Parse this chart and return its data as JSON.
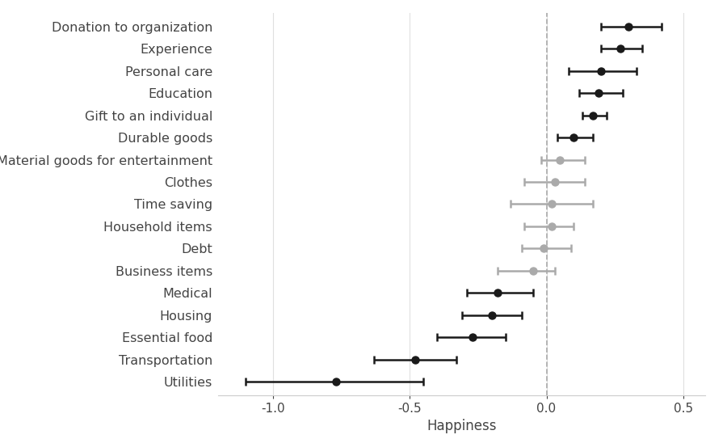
{
  "categories": [
    "Donation to organization",
    "Experience",
    "Personal care",
    "Education",
    "Gift to an individual",
    "Durable goods",
    "Material goods for entertainment",
    "Clothes",
    "Time saving",
    "Household items",
    "Debt",
    "Business items",
    "Medical",
    "Housing",
    "Essential food",
    "Transportation",
    "Utilities"
  ],
  "estimates": [
    0.3,
    0.27,
    0.2,
    0.19,
    0.17,
    0.1,
    0.05,
    0.03,
    0.02,
    0.02,
    -0.01,
    -0.05,
    -0.18,
    -0.2,
    -0.27,
    -0.48,
    -0.77
  ],
  "ci_low": [
    0.2,
    0.2,
    0.08,
    0.12,
    0.13,
    0.04,
    -0.02,
    -0.08,
    -0.13,
    -0.08,
    -0.09,
    -0.18,
    -0.29,
    -0.31,
    -0.4,
    -0.63,
    -1.1
  ],
  "ci_high": [
    0.42,
    0.35,
    0.33,
    0.28,
    0.22,
    0.17,
    0.14,
    0.14,
    0.17,
    0.1,
    0.09,
    0.03,
    -0.05,
    -0.09,
    -0.15,
    -0.33,
    -0.45
  ],
  "colors": [
    "#1a1a1a",
    "#1a1a1a",
    "#1a1a1a",
    "#1a1a1a",
    "#1a1a1a",
    "#1a1a1a",
    "#aaaaaa",
    "#aaaaaa",
    "#aaaaaa",
    "#aaaaaa",
    "#aaaaaa",
    "#aaaaaa",
    "#1a1a1a",
    "#1a1a1a",
    "#1a1a1a",
    "#1a1a1a",
    "#1a1a1a"
  ],
  "xlabel": "Happiness",
  "xlim": [
    -1.2,
    0.58
  ],
  "xticks": [
    -1.0,
    -0.5,
    0.0,
    0.5
  ],
  "xtick_labels": [
    "-1.0",
    "-0.5",
    "0.0",
    "0.5"
  ],
  "vline_x": 0.0,
  "background_color": "#ffffff",
  "grid_color": "#e0e0e0",
  "font_size_labels": 11.5,
  "font_size_axis": 11
}
